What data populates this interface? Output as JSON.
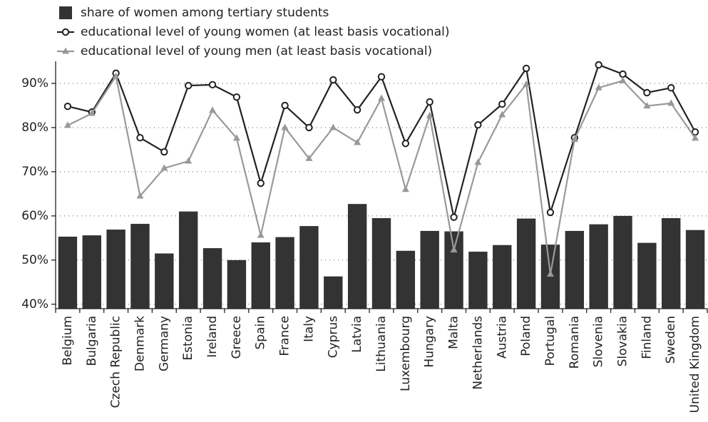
{
  "chart_data": {
    "type": "combo",
    "categories": [
      "Belgium",
      "Bulgaria",
      "Czech Republic",
      "Denmark",
      "Germany",
      "Estonia",
      "Ireland",
      "Greece",
      "Spain",
      "France",
      "Italy",
      "Cyprus",
      "Latvia",
      "Lithuania",
      "Luxembourg",
      "Hungary",
      "Malta",
      "Netherlands",
      "Austria",
      "Poland",
      "Portugal",
      "Romania",
      "Slovenia",
      "Slovakia",
      "Finland",
      "Sweden",
      "United Kingdom"
    ],
    "series": [
      {
        "name": "share of women among tertiary students",
        "type": "bar",
        "color": "#333333",
        "values": [
          55.3,
          55.6,
          56.9,
          58.2,
          51.5,
          61.0,
          52.7,
          50.0,
          54.0,
          55.2,
          57.7,
          46.3,
          62.7,
          59.5,
          52.1,
          56.6,
          56.5,
          51.9,
          53.4,
          59.4,
          53.5,
          56.6,
          58.1,
          60.0,
          53.9,
          59.5,
          56.8
        ]
      },
      {
        "name": "educational level of young women (at least basis vocational)",
        "type": "line",
        "marker": "circle",
        "color": "#222222",
        "values": [
          84.8,
          83.5,
          92.3,
          77.7,
          74.5,
          89.5,
          89.7,
          86.9,
          67.4,
          85.0,
          80.0,
          90.8,
          84.0,
          91.5,
          76.4,
          85.8,
          59.7,
          80.6,
          85.3,
          93.4,
          60.8,
          77.7,
          94.2,
          92.1,
          87.9,
          89.0,
          79.0
        ]
      },
      {
        "name": "educational level of young men (at least basis vocational)",
        "type": "line",
        "marker": "triangle",
        "color": "#999999",
        "values": [
          80.5,
          83.2,
          91.6,
          64.5,
          70.8,
          72.4,
          83.9,
          77.6,
          55.6,
          80.0,
          73.0,
          80.0,
          76.6,
          86.6,
          66.0,
          82.7,
          52.3,
          72.1,
          82.9,
          89.8,
          46.8,
          77.3,
          89.0,
          90.6,
          84.9,
          85.5,
          77.6
        ]
      }
    ],
    "ylim": [
      39,
      95
    ],
    "yticks": [
      {
        "value": 40,
        "label": "40%"
      },
      {
        "value": 50,
        "label": "50%"
      },
      {
        "value": 60,
        "label": "60%"
      },
      {
        "value": 70,
        "label": "70%"
      },
      {
        "value": 80,
        "label": "80%"
      },
      {
        "value": 90,
        "label": "90%"
      }
    ],
    "grid": true,
    "legend": "top-left"
  }
}
